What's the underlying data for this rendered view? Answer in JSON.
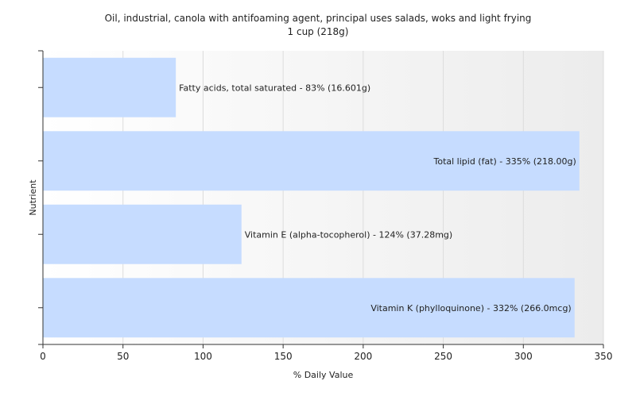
{
  "chart_data": {
    "type": "bar",
    "orientation": "horizontal",
    "title": "Oil, industrial, canola with antifoaming agent, principal uses salads, woks and light frying",
    "subtitle": "1 cup (218g)",
    "xlabel": "% Daily Value",
    "ylabel": "Nutrient",
    "xlim": [
      0,
      350
    ],
    "xticks": [
      0,
      50,
      100,
      150,
      200,
      250,
      300,
      350
    ],
    "grid": true,
    "legend": "none",
    "bar_color": "#c6dcff",
    "categories": [
      "Fatty acids, total saturated",
      "Total lipid (fat)",
      "Vitamin E (alpha-tocopherol)",
      "Vitamin K (phylloquinone)"
    ],
    "values": [
      83,
      335,
      124,
      332
    ],
    "data_labels": [
      "Fatty acids, total saturated - 83% (16.601g)",
      "Total lipid (fat) - 335% (218.00g)",
      "Vitamin E (alpha-tocopherol) - 124% (37.28mg)",
      "Vitamin K (phylloquinone) - 332% (266.0mcg)"
    ]
  }
}
